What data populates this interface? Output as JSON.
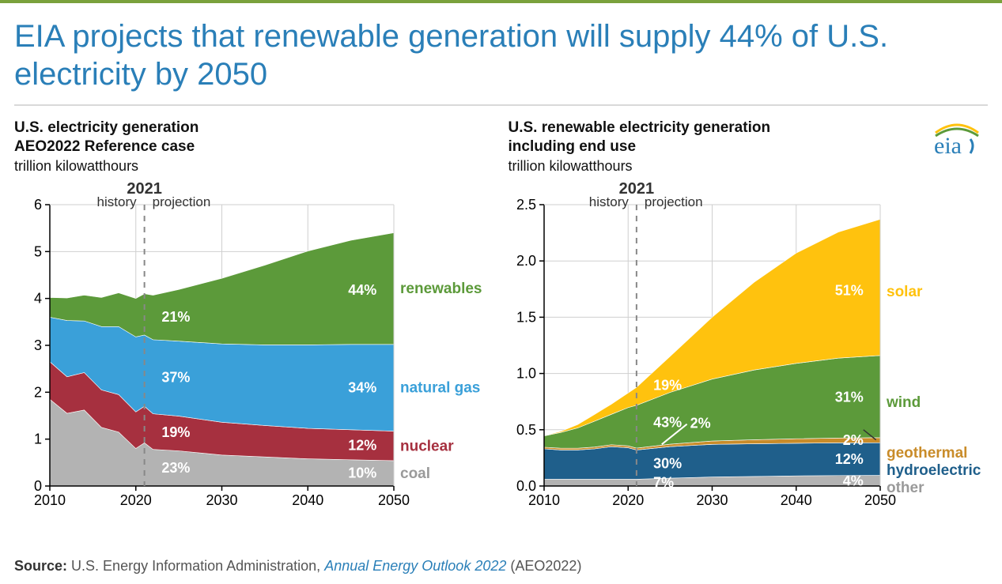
{
  "accent_top_border": "#7aa13c",
  "headline": "EIA projects that renewable generation will supply 44% of U.S. electricity by 2050",
  "headline_color": "#2a7fb8",
  "divider_color": "#d9d9d9",
  "logo": {
    "text": "eia",
    "color": "#2a7fb8",
    "swoosh1": "#ffc20e",
    "swoosh2": "#5c9a3a"
  },
  "source": {
    "label": "Source:",
    "text1": "U.S. Energy Information Administration,",
    "italic": "Annual Energy Outlook 2022",
    "text2": "(AEO2022)"
  },
  "chartA": {
    "type": "stacked-area",
    "title_line1": "U.S. electricity generation",
    "title_line2": "AEO2022 Reference case",
    "subtitle": "trillion kilowatthours",
    "xlim": [
      2010,
      2050
    ],
    "ylim": [
      0,
      6
    ],
    "x_ticks": [
      2010,
      2020,
      2030,
      2040,
      2050
    ],
    "y_ticks": [
      0,
      1,
      2,
      3,
      4,
      5,
      6
    ],
    "divider_year": 2021,
    "divider_label": "2021",
    "history_label": "history",
    "projection_label": "projection",
    "grid_color": "#cfcfcf",
    "axis_color": "#000000",
    "series": [
      {
        "name": "coal",
        "color": "#b3b3b3",
        "label_color": "#9a9a9a",
        "pct_start": "23%",
        "pct_end": "10%",
        "y": {
          "2010": 1.85,
          "2012": 1.55,
          "2014": 1.62,
          "2016": 1.25,
          "2018": 1.15,
          "2020": 0.8,
          "2021": 0.92,
          "2022": 0.78,
          "2025": 0.75,
          "2030": 0.66,
          "2035": 0.62,
          "2040": 0.58,
          "2045": 0.56,
          "2050": 0.54
        }
      },
      {
        "name": "nuclear",
        "color": "#a6303f",
        "label_color": "#a6303f",
        "pct_start": "19%",
        "pct_end": "12%",
        "y": {
          "2010": 0.8,
          "2012": 0.78,
          "2014": 0.8,
          "2016": 0.8,
          "2018": 0.8,
          "2020": 0.78,
          "2021": 0.78,
          "2022": 0.76,
          "2025": 0.74,
          "2030": 0.7,
          "2035": 0.67,
          "2040": 0.65,
          "2045": 0.64,
          "2050": 0.63
        }
      },
      {
        "name": "natural gas",
        "color": "#3aa0d9",
        "label_color": "#3aa0d9",
        "pct_start": "37%",
        "pct_end": "34%",
        "y": {
          "2010": 0.95,
          "2012": 1.2,
          "2014": 1.1,
          "2016": 1.35,
          "2018": 1.45,
          "2020": 1.6,
          "2021": 1.52,
          "2022": 1.58,
          "2025": 1.6,
          "2030": 1.67,
          "2035": 1.72,
          "2040": 1.78,
          "2045": 1.82,
          "2050": 1.85
        }
      },
      {
        "name": "renewables",
        "color": "#5c9a3a",
        "label_color": "#5c9a3a",
        "pct_start": "21%",
        "pct_end": "44%",
        "y": {
          "2010": 0.42,
          "2012": 0.48,
          "2014": 0.55,
          "2016": 0.62,
          "2018": 0.72,
          "2020": 0.82,
          "2021": 0.88,
          "2022": 0.95,
          "2025": 1.1,
          "2030": 1.4,
          "2035": 1.7,
          "2040": 2.0,
          "2045": 2.22,
          "2050": 2.38
        }
      }
    ]
  },
  "chartB": {
    "type": "stacked-area",
    "title_line1": "U.S. renewable electricity generation",
    "title_line2": "including end use",
    "subtitle": "trillion kilowatthours",
    "xlim": [
      2010,
      2050
    ],
    "ylim": [
      0,
      2.5
    ],
    "x_ticks": [
      2010,
      2020,
      2030,
      2040,
      2050
    ],
    "y_ticks": [
      0.0,
      0.5,
      1.0,
      1.5,
      2.0,
      2.5
    ],
    "divider_year": 2021,
    "divider_label": "2021",
    "history_label": "history",
    "projection_label": "projection",
    "grid_color": "#cfcfcf",
    "axis_color": "#000000",
    "series": [
      {
        "name": "other",
        "color": "#b3b3b3",
        "label_color": "#9a9a9a",
        "pct_start": "7%",
        "pct_end": "4%",
        "y": {
          "2010": 0.06,
          "2012": 0.06,
          "2014": 0.06,
          "2016": 0.06,
          "2018": 0.06,
          "2020": 0.06,
          "2021": 0.06,
          "2025": 0.07,
          "2030": 0.08,
          "2035": 0.085,
          "2040": 0.09,
          "2045": 0.093,
          "2050": 0.095
        }
      },
      {
        "name": "hydroelectric",
        "color": "#1f5f8b",
        "label_color": "#1f5f8b",
        "pct_start": "30%",
        "pct_end": "12%",
        "y": {
          "2010": 0.27,
          "2012": 0.26,
          "2014": 0.26,
          "2016": 0.27,
          "2018": 0.29,
          "2020": 0.28,
          "2021": 0.26,
          "2025": 0.28,
          "2030": 0.29,
          "2035": 0.29,
          "2040": 0.29,
          "2045": 0.29,
          "2050": 0.29
        }
      },
      {
        "name": "geothermal",
        "color": "#c98c2a",
        "label_color": "#c98c2a",
        "pct_start": "2%",
        "pct_end": "2%",
        "y": {
          "2010": 0.015,
          "2012": 0.016,
          "2014": 0.016,
          "2016": 0.016,
          "2018": 0.017,
          "2020": 0.017,
          "2021": 0.017,
          "2025": 0.022,
          "2030": 0.03,
          "2035": 0.036,
          "2040": 0.04,
          "2045": 0.043,
          "2050": 0.045
        }
      },
      {
        "name": "wind",
        "color": "#5c9a3a",
        "label_color": "#5c9a3a",
        "pct_start": "43%",
        "pct_end": "31%",
        "y": {
          "2010": 0.1,
          "2012": 0.14,
          "2014": 0.18,
          "2016": 0.23,
          "2018": 0.27,
          "2020": 0.34,
          "2021": 0.38,
          "2025": 0.46,
          "2030": 0.55,
          "2035": 0.62,
          "2040": 0.67,
          "2045": 0.71,
          "2050": 0.73
        }
      },
      {
        "name": "solar",
        "color": "#ffc20e",
        "label_color": "#ffc20e",
        "pct_start": "19%",
        "pct_end": "51%",
        "y": {
          "2010": 0.002,
          "2012": 0.01,
          "2014": 0.03,
          "2016": 0.06,
          "2018": 0.09,
          "2020": 0.13,
          "2021": 0.16,
          "2025": 0.32,
          "2030": 0.55,
          "2035": 0.78,
          "2040": 0.98,
          "2045": 1.12,
          "2050": 1.21
        }
      }
    ]
  }
}
